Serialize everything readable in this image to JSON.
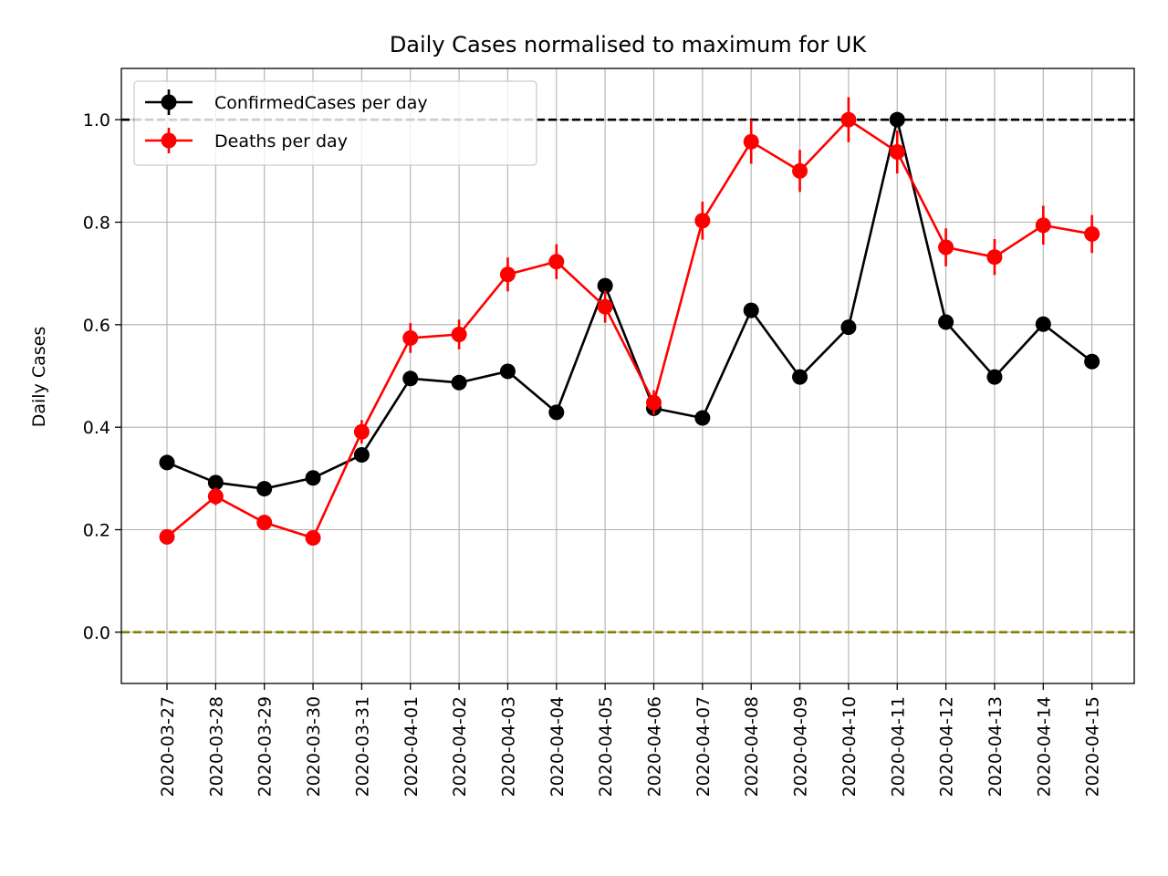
{
  "chart_data": {
    "type": "line",
    "title": "Daily Cases normalised to maximum for UK",
    "xlabel": "",
    "ylabel": "Daily Cases",
    "ylim": [
      -0.1,
      1.1
    ],
    "yticks": [
      "0.0",
      "0.2",
      "0.4",
      "0.6",
      "0.8",
      "1.0"
    ],
    "grid": true,
    "legend_position": "top-left",
    "categories": [
      "2020-03-27",
      "2020-03-28",
      "2020-03-29",
      "2020-03-30",
      "2020-03-31",
      "2020-04-01",
      "2020-04-02",
      "2020-04-03",
      "2020-04-04",
      "2020-04-05",
      "2020-04-06",
      "2020-04-07",
      "2020-04-08",
      "2020-04-09",
      "2020-04-10",
      "2020-04-11",
      "2020-04-12",
      "2020-04-13",
      "2020-04-14",
      "2020-04-15"
    ],
    "series": [
      {
        "name": "ConfirmedCases per day",
        "color": "#000000",
        "values": [
          0.331,
          0.292,
          0.28,
          0.301,
          0.346,
          0.495,
          0.487,
          0.509,
          0.429,
          0.676,
          0.437,
          0.418,
          0.628,
          0.498,
          0.595,
          1.0,
          0.605,
          0.498,
          0.601,
          0.528
        ],
        "errors": [
          0.005,
          0.005,
          0.005,
          0.005,
          0.005,
          0.006,
          0.006,
          0.006,
          0.006,
          0.007,
          0.006,
          0.006,
          0.007,
          0.006,
          0.007,
          0.009,
          0.007,
          0.006,
          0.007,
          0.006
        ]
      },
      {
        "name": "Deaths per day",
        "color": "#ff0000",
        "values": [
          0.186,
          0.265,
          0.214,
          0.184,
          0.391,
          0.574,
          0.581,
          0.698,
          0.723,
          0.635,
          0.448,
          0.803,
          0.957,
          0.9,
          1.0,
          0.937,
          0.751,
          0.732,
          0.794,
          0.777
        ],
        "errors": [
          0.013,
          0.017,
          0.015,
          0.014,
          0.023,
          0.029,
          0.029,
          0.033,
          0.034,
          0.031,
          0.024,
          0.037,
          0.043,
          0.041,
          0.044,
          0.042,
          0.037,
          0.035,
          0.038,
          0.037
        ]
      }
    ],
    "reference_lines": [
      {
        "y": 1.0,
        "color": "#000000",
        "style": "dashed"
      },
      {
        "y": 0.0,
        "color": "#808000",
        "style": "dashed"
      }
    ]
  }
}
